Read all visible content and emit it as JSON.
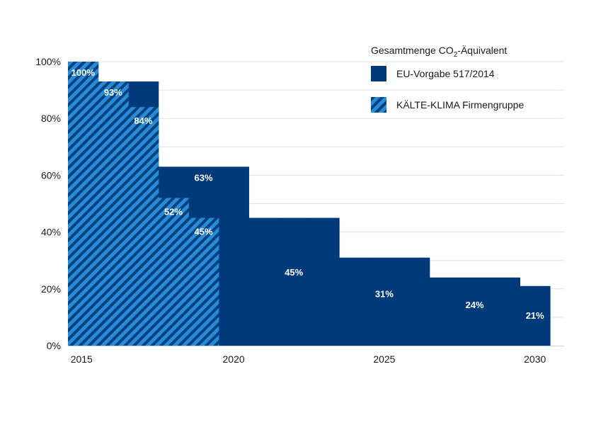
{
  "chart_data": {
    "type": "bar",
    "legend": {
      "title_prefix": "Gesamtmenge CO",
      "title_sub": "2",
      "title_suffix": "-Äquivalent",
      "placement": "top-right"
    },
    "x_ticks": [
      "2015",
      "2020",
      "2025",
      "2030"
    ],
    "y_ticks": [
      "0%",
      "20%",
      "40%",
      "60%",
      "80%",
      "100%"
    ],
    "ylim": [
      0,
      100
    ],
    "grid": true,
    "series": [
      {
        "name": "EU-Vorgabe 517/2014",
        "color": "#003a7a",
        "pattern": "solid",
        "points": [
          {
            "x": 2015,
            "value": 100,
            "label": "100%"
          },
          {
            "x": 2016,
            "value": 93,
            "label": "93%"
          },
          {
            "x": 2017,
            "value": 93,
            "label": ""
          },
          {
            "x": 2018,
            "value": 63,
            "label": ""
          },
          {
            "x": 2019,
            "value": 63,
            "label": "63%"
          },
          {
            "x": 2020,
            "value": 63,
            "label": ""
          },
          {
            "x": 2021,
            "value": 45,
            "label": ""
          },
          {
            "x": 2022,
            "value": 45,
            "label": "45%"
          },
          {
            "x": 2023,
            "value": 45,
            "label": ""
          },
          {
            "x": 2024,
            "value": 31,
            "label": ""
          },
          {
            "x": 2025,
            "value": 31,
            "label": "31%"
          },
          {
            "x": 2026,
            "value": 31,
            "label": ""
          },
          {
            "x": 2027,
            "value": 24,
            "label": ""
          },
          {
            "x": 2028,
            "value": 24,
            "label": "24%"
          },
          {
            "x": 2029,
            "value": 24,
            "label": ""
          },
          {
            "x": 2030,
            "value": 21,
            "label": "21%"
          }
        ]
      },
      {
        "name": "KÄLTE-KLIMA Firmengruppe",
        "color": "#2a8ad8",
        "stripe_color": "#00427e",
        "pattern": "hatched",
        "points": [
          {
            "x": 2015,
            "value": 100,
            "label": ""
          },
          {
            "x": 2016,
            "value": 93,
            "label": ""
          },
          {
            "x": 2017,
            "value": 84,
            "label": "84%"
          },
          {
            "x": 2018,
            "value": 52,
            "label": "52%"
          },
          {
            "x": 2019,
            "value": 45,
            "label": "45%"
          }
        ]
      }
    ]
  }
}
